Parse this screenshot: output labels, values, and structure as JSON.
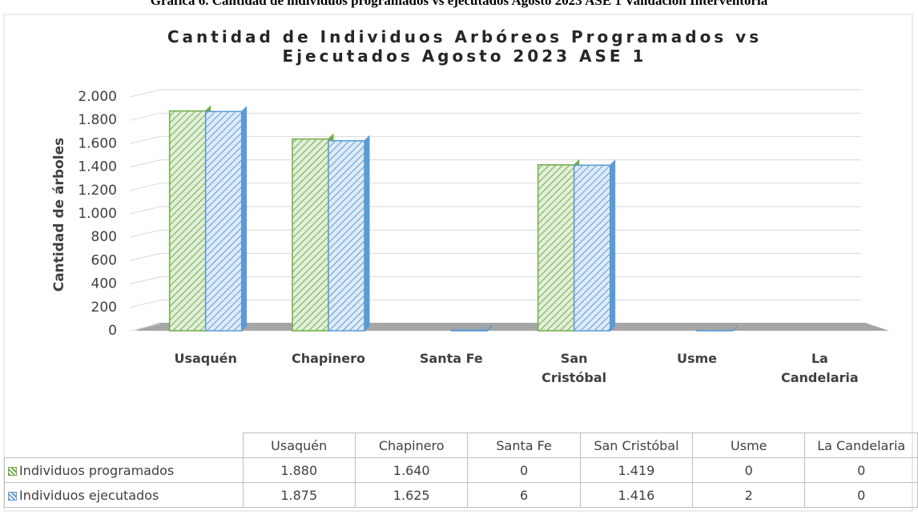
{
  "caption": "Gráfica 6. Cantidad de individuos programados vs ejecutados Agosto 2023 ASE 1 Validación Interventoría",
  "chart_data": {
    "type": "bar",
    "title": "Cantidad de Individuos Arbóreos Programados vs Ejecutados Agosto 2023 ASE 1",
    "y_label": "Cantidad de árboles",
    "categories": [
      "Usaquén",
      "Chapinero",
      "Santa Fe",
      "San Cristóbal",
      "Usme",
      "La Candelaria"
    ],
    "series": [
      {
        "name": "Individuos programados",
        "color": "#70ad47",
        "values": [
          1880,
          1640,
          0,
          1419,
          0,
          0
        ],
        "value_labels": [
          "1.880",
          "1.640",
          "0",
          "1.419",
          "0",
          "0"
        ]
      },
      {
        "name": "Individuos ejecutados",
        "color": "#5b9bd5",
        "values": [
          1875,
          1625,
          6,
          1416,
          2,
          0
        ],
        "value_labels": [
          "1.875",
          "1.625",
          "6",
          "1.416",
          "2",
          "0"
        ]
      }
    ],
    "ylim": [
      0,
      2000
    ],
    "yticks": [
      0,
      200,
      400,
      600,
      800,
      {
        "value": 1000,
        "label": "1.000"
      },
      {
        "value": 1200,
        "label": "1.200"
      },
      {
        "value": 1400,
        "label": "1.400"
      },
      {
        "value": 1600,
        "label": "1.600"
      },
      {
        "value": 1800,
        "label": "1.800"
      },
      {
        "value": 2000,
        "label": "2.000"
      }
    ],
    "grid": true
  }
}
